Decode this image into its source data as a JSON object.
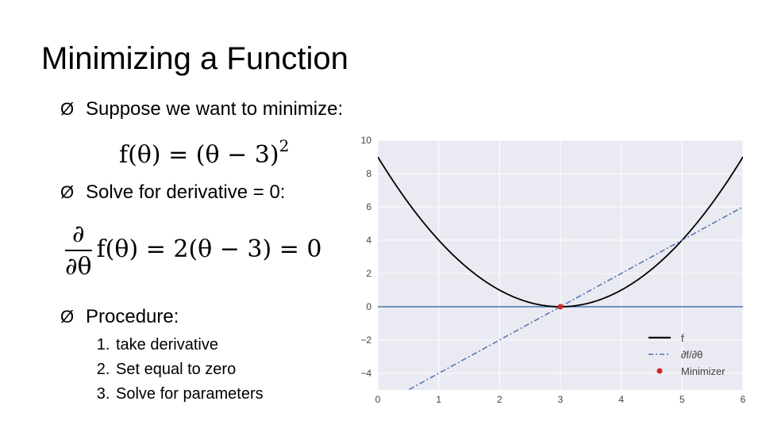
{
  "slide": {
    "title": "Minimizing a Function",
    "bullet1": "Suppose we want to minimize:",
    "bullet2": "Solve for derivative = 0:",
    "bullet3": "Procedure:",
    "bullet_marker": "Ø",
    "steps": [
      "take derivative",
      "Set equal to zero",
      "Solve for parameters"
    ],
    "eq1": {
      "lhs": "f(θ) = (θ − 3)",
      "exp": "2"
    },
    "eq2": {
      "num": "∂",
      "den": "∂θ",
      "rest": "f(θ) = 2(θ − 3) = 0"
    }
  },
  "chart_data": {
    "type": "line",
    "xlim": [
      0,
      6
    ],
    "ylim": [
      -5,
      10
    ],
    "x_ticks": [
      "0",
      "1",
      "2",
      "3",
      "4",
      "5",
      "6"
    ],
    "y_ticks": [
      "10",
      "8",
      "6",
      "4",
      "2",
      "0",
      "−2",
      "−4"
    ],
    "x_tick_values": [
      0,
      1,
      2,
      3,
      4,
      5,
      6
    ],
    "y_tick_values": [
      10,
      8,
      6,
      4,
      2,
      0,
      -2,
      -4
    ],
    "grid": true,
    "legend_position": "bottom-right",
    "series": [
      {
        "name": "f",
        "function": "(x-3)^2",
        "style": "solid",
        "color": "#000000"
      },
      {
        "name": "∂f/∂θ",
        "function": "2(x-3)",
        "style": "dashdot",
        "color": "#4a72b0"
      }
    ],
    "zero_line": {
      "y": 0,
      "color": "#4a72b0"
    },
    "points": [
      {
        "name": "Minimizer",
        "x": 3,
        "y": 0,
        "color": "#d62728"
      }
    ],
    "colors": {
      "background": "#eaeaf2",
      "grid": "#ffffff"
    }
  }
}
